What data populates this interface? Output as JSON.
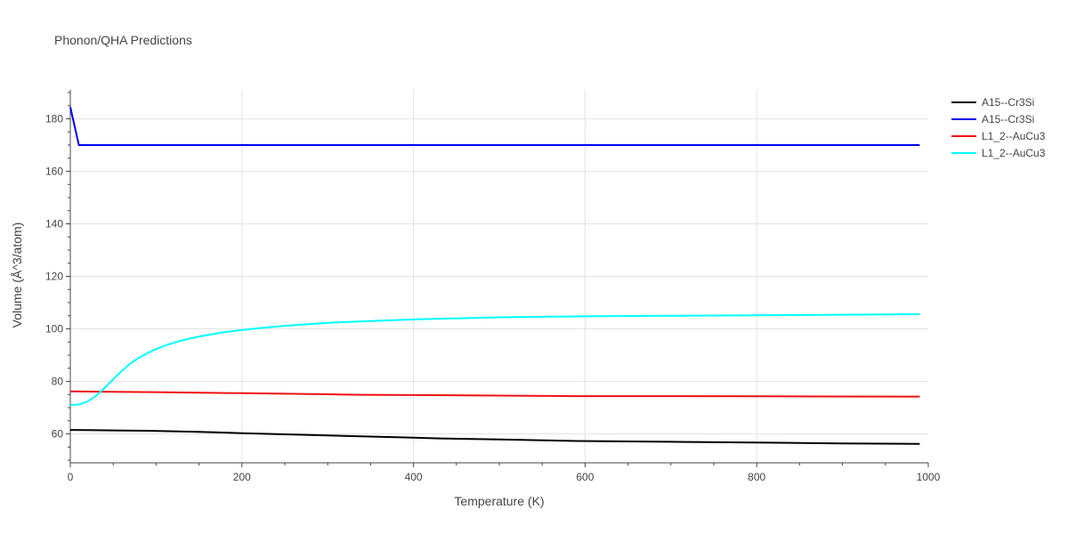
{
  "chart_data": {
    "type": "line",
    "title": "Phonon/QHA Predictions",
    "xlabel": "Temperature (K)",
    "ylabel": "Volume (Å^3/atom)",
    "xlim": [
      0,
      1000
    ],
    "ylim": [
      49,
      191
    ],
    "xticks": [
      0,
      200,
      400,
      600,
      800,
      1000
    ],
    "yticks": [
      60,
      80,
      100,
      120,
      140,
      160,
      180
    ],
    "grid": true,
    "legend": "top-right",
    "series": [
      {
        "name": "A15--Cr3Si",
        "color": "#000000",
        "x": [
          0,
          20,
          50,
          90,
          150,
          200,
          300,
          400,
          430,
          500,
          590,
          700,
          800,
          900,
          990
        ],
        "y": [
          61.5,
          61.45,
          61.35,
          61.2,
          60.8,
          60.3,
          59.4,
          58.6,
          58.3,
          57.9,
          57.3,
          57.0,
          56.7,
          56.4,
          56.2
        ]
      },
      {
        "name": "A15--Cr3Si",
        "color": "#0000ee",
        "x": [
          0,
          10,
          20,
          100,
          200,
          400,
          600,
          800,
          990
        ],
        "y": [
          184.5,
          170,
          170,
          170,
          170,
          170,
          170,
          170,
          170
        ]
      },
      {
        "name": "L1_2--AuCu3",
        "color": "#ee1111",
        "x": [
          0,
          50,
          100,
          200,
          300,
          340,
          400,
          500,
          590,
          700,
          800,
          900,
          990
        ],
        "y": [
          76.2,
          76.0,
          75.9,
          75.5,
          75.1,
          74.9,
          74.8,
          74.6,
          74.4,
          74.4,
          74.3,
          74.25,
          74.2
        ]
      },
      {
        "name": "L1_2--AuCu3",
        "color": "#00ffff",
        "x": [
          0,
          10,
          20,
          30,
          40,
          50,
          60,
          70,
          80,
          90,
          100,
          110,
          120,
          130,
          150,
          175,
          200,
          230,
          260,
          300,
          350,
          400,
          450,
          500,
          550,
          600,
          700,
          800,
          900,
          990
        ],
        "y": [
          71.0,
          71.2,
          72.3,
          74.5,
          77.5,
          80.8,
          84.0,
          86.8,
          89.0,
          90.8,
          92.3,
          93.6,
          94.7,
          95.6,
          97.1,
          98.5,
          99.6,
          100.6,
          101.4,
          102.3,
          103.0,
          103.6,
          104.0,
          104.4,
          104.6,
          104.8,
          105.0,
          105.2,
          105.4,
          105.6
        ]
      }
    ]
  }
}
